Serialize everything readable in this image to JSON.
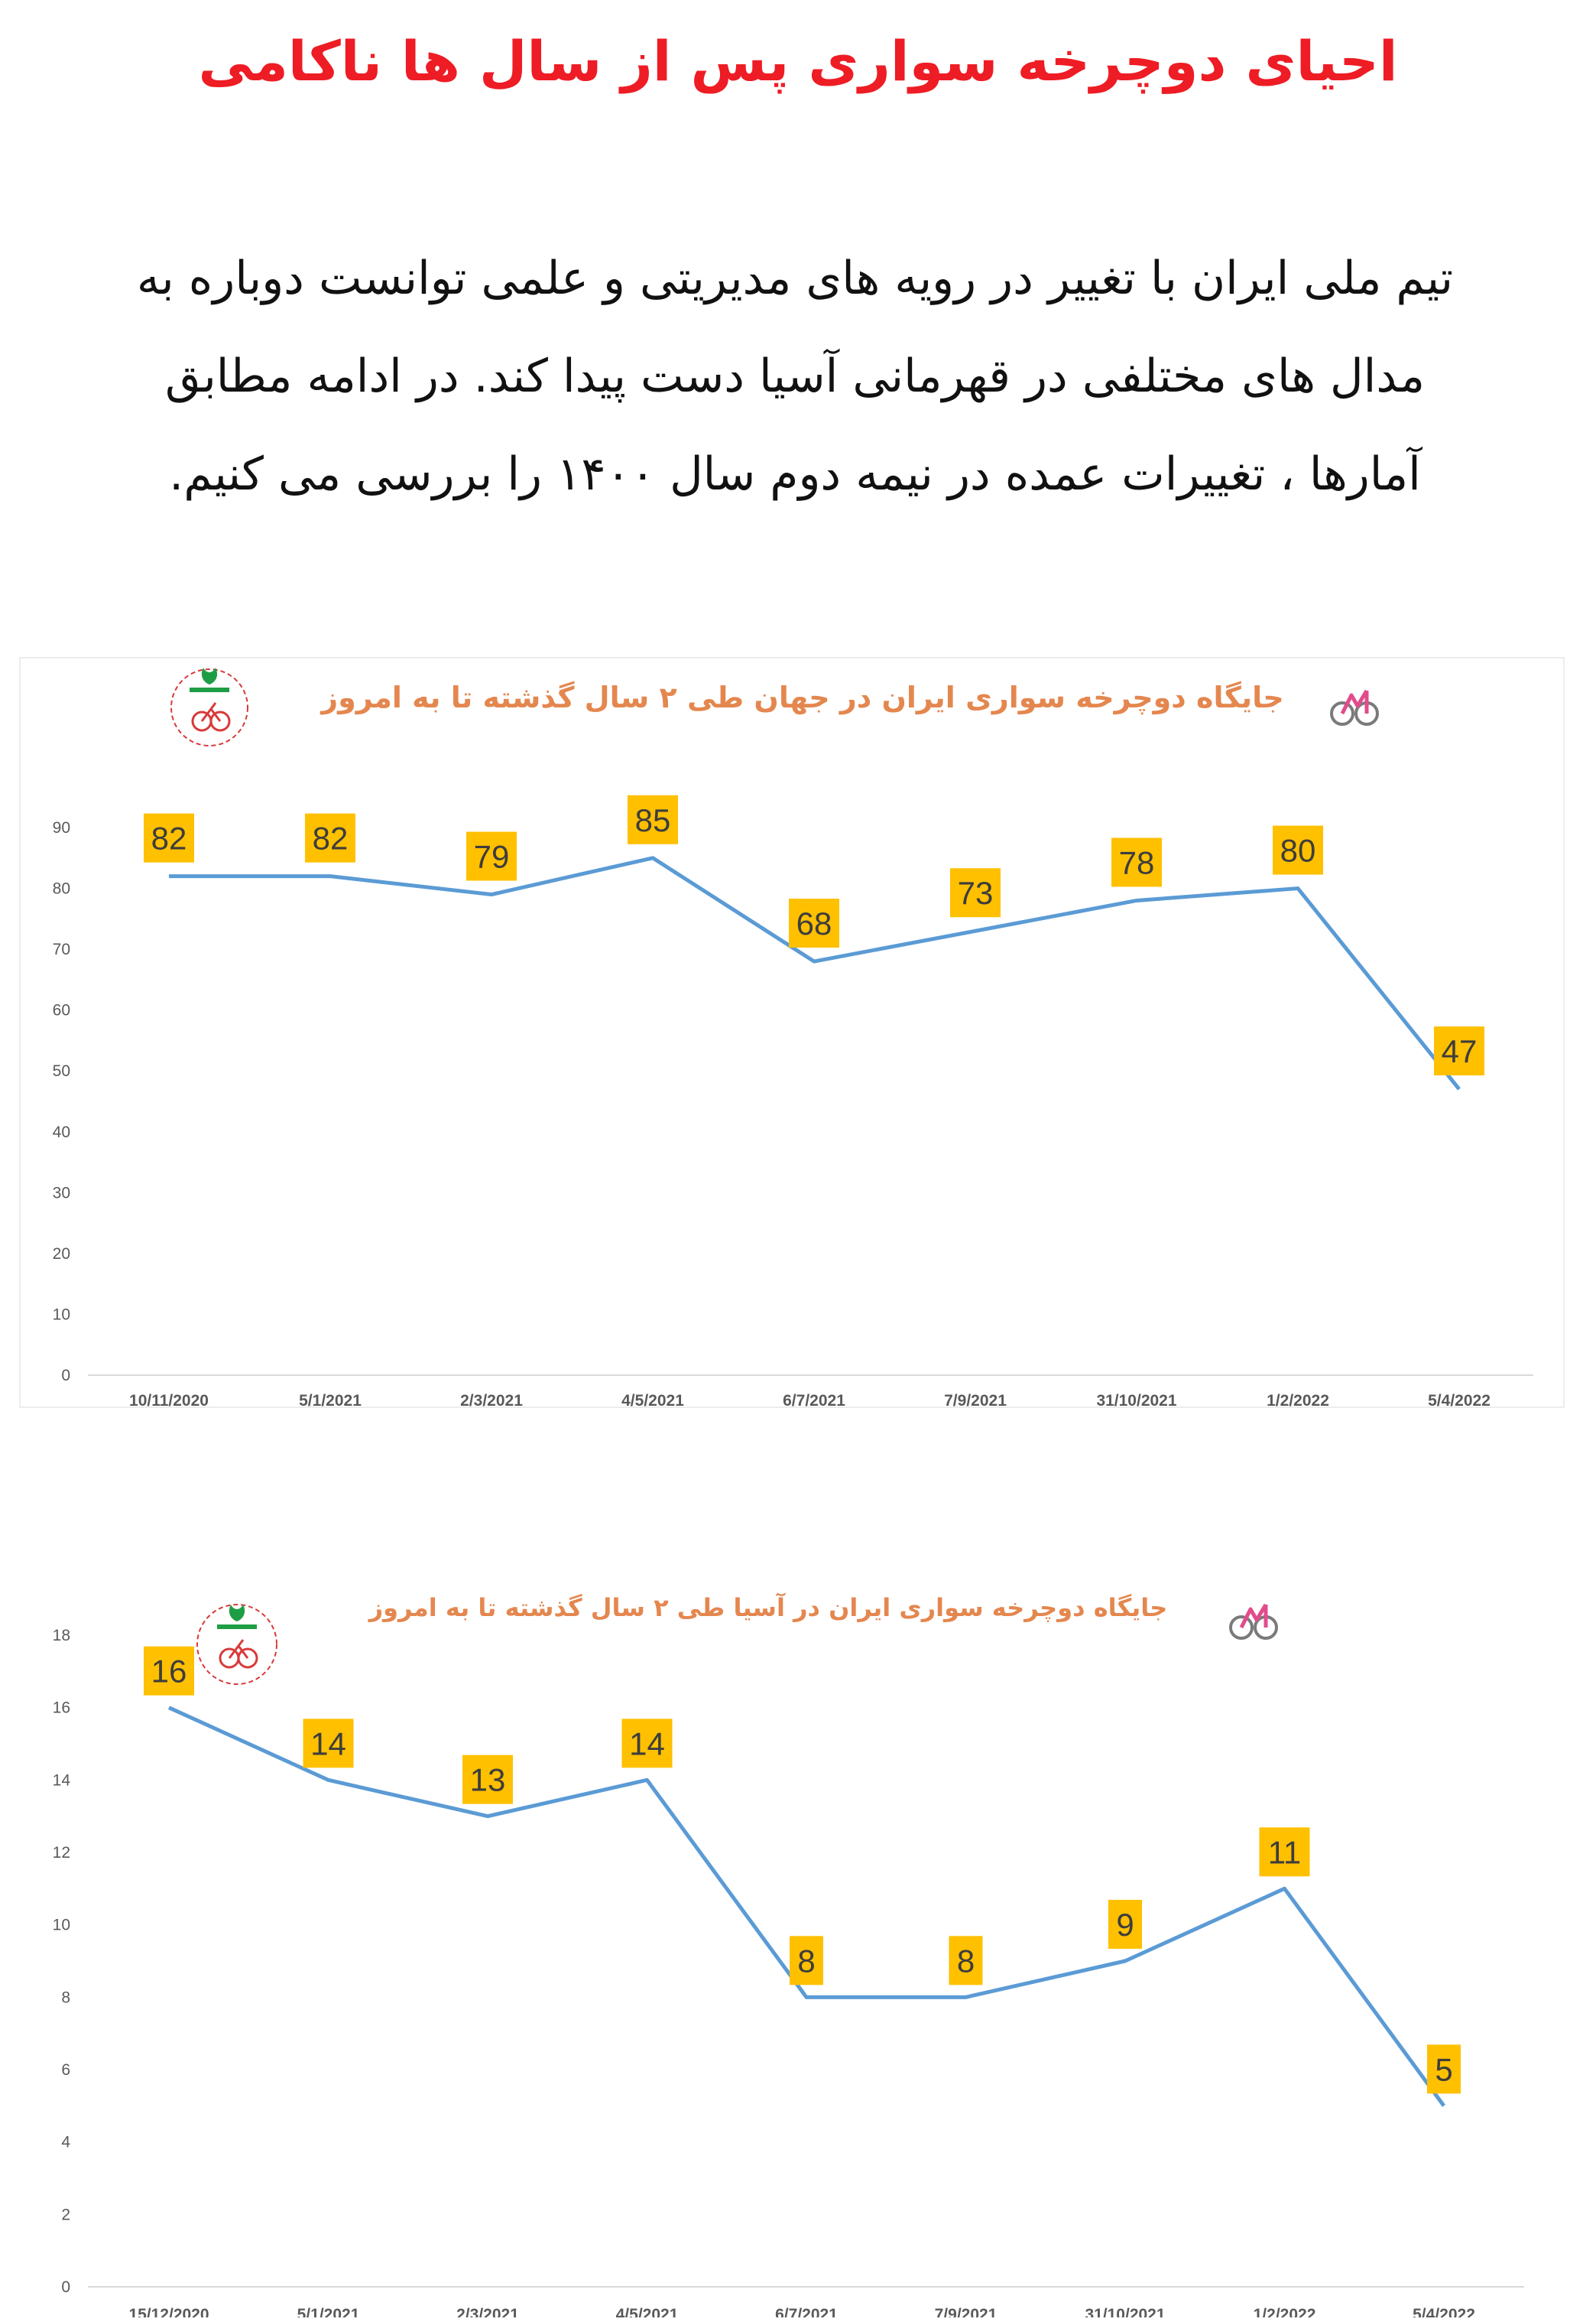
{
  "title": "احیای دوچرخه سواری پس از سال ها ناکامی",
  "intro_lines": [
    "تیم ملی ایران با تغییر در رویه های مدیریتی و علمی  توانست دوباره به",
    "مدال های مختلفی در قهرمانی آسیا دست پیدا کند. در ادامه مطابق",
    "آمارها ، تغییرات عمده در نیمه دوم سال ۱۴۰۰ را بررسی می کنیم."
  ],
  "colors": {
    "title": "#ee1c24",
    "line": "#5b9bd5",
    "label_bg": "#ffc000",
    "chart_title": "#e4874f",
    "axis": "#d9d9d9"
  },
  "icons": [
    "federation-logo-icon",
    "bicycle-icon"
  ],
  "chart_data": [
    {
      "type": "line",
      "title": "جایگاه دوچرخه سواری ایران در جهان طی ۲ سال گذشته تا به امروز",
      "categories": [
        "10/11/2020",
        "5/1/2021",
        "2/3/2021",
        "4/5/2021",
        "6/7/2021",
        "7/9/2021",
        "31/10/2021",
        "1/2/2022",
        "5/4/2022"
      ],
      "values": [
        82,
        82,
        79,
        85,
        68,
        73,
        78,
        80,
        47
      ],
      "ylim": [
        0,
        90
      ],
      "yticks": [
        0,
        10,
        20,
        30,
        40,
        50,
        60,
        70,
        80,
        90
      ],
      "grid": false,
      "data_labels": true
    },
    {
      "type": "line",
      "title": "جایگاه دوچرخه سواری ایران در آسیا طی ۲ سال گذشته تا به امروز",
      "categories": [
        "15/12/2020",
        "5/1/2021",
        "2/3/2021",
        "4/5/2021",
        "6/7/2021",
        "7/9/2021",
        "31/10/2021",
        "1/2/2022",
        "5/4/2022"
      ],
      "values": [
        16,
        14,
        13,
        14,
        8,
        8,
        9,
        11,
        5
      ],
      "ylim": [
        0,
        18
      ],
      "yticks": [
        0,
        2,
        4,
        6,
        8,
        10,
        12,
        14,
        16,
        18
      ],
      "grid": false,
      "data_labels": true
    }
  ]
}
